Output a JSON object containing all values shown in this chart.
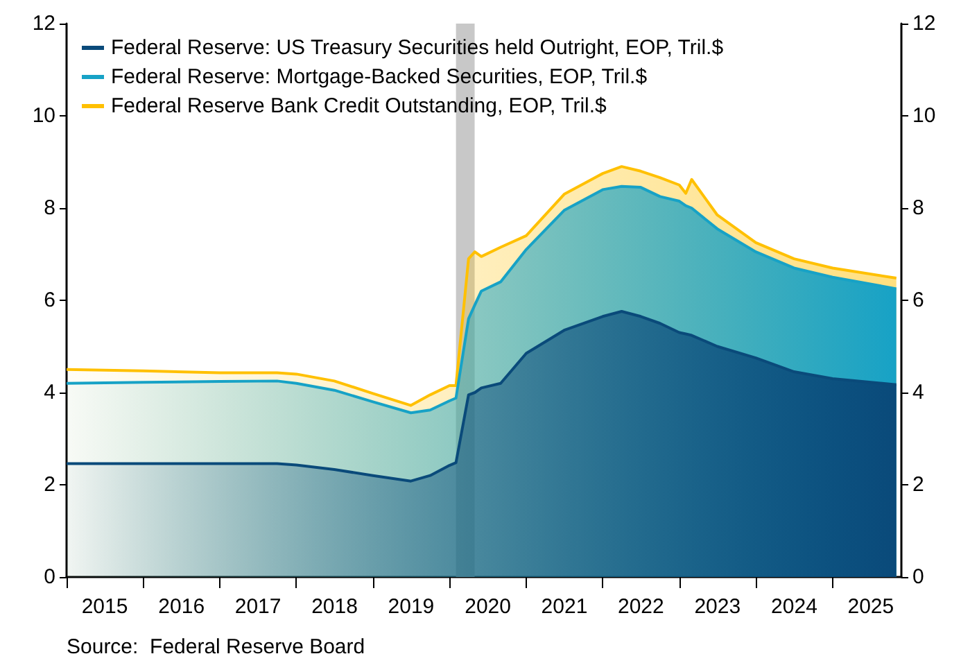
{
  "chart_data": {
    "type": "area",
    "stacked": true,
    "x": [
      "2015-01",
      "2016-01",
      "2017-01",
      "2017-10",
      "2018-01",
      "2018-07",
      "2019-01",
      "2019-07",
      "2019-10",
      "2020-01",
      "2020-02",
      "2020-04",
      "2020-05",
      "2020-06",
      "2020-09",
      "2021-01",
      "2021-07",
      "2022-01",
      "2022-04",
      "2022-07",
      "2022-10",
      "2023-01",
      "2023-02",
      "2023-03",
      "2023-07",
      "2024-01",
      "2024-07",
      "2025-01",
      "2025-11"
    ],
    "series": [
      {
        "name": "Federal Reserve: US Treasury Securities held Outright, EOP, Tril.$",
        "color": "#0a4a7a",
        "values": [
          2.46,
          2.46,
          2.46,
          2.46,
          2.43,
          2.33,
          2.2,
          2.08,
          2.2,
          2.42,
          2.48,
          3.95,
          4.0,
          4.1,
          4.2,
          4.85,
          5.35,
          5.65,
          5.76,
          5.65,
          5.5,
          5.3,
          5.27,
          5.24,
          5.0,
          4.75,
          4.45,
          4.3,
          4.17
        ]
      },
      {
        "name": "Federal Reserve: Mortgage-Backed Securities, EOP, Tril.$",
        "color": "#17a2c6",
        "values": [
          1.74,
          1.76,
          1.78,
          1.79,
          1.77,
          1.72,
          1.6,
          1.48,
          1.42,
          1.4,
          1.4,
          1.65,
          1.9,
          2.1,
          2.2,
          2.25,
          2.6,
          2.75,
          2.71,
          2.8,
          2.75,
          2.85,
          2.78,
          2.76,
          2.55,
          2.3,
          2.25,
          2.2,
          2.08
        ]
      },
      {
        "name": "Federal Reserve Bank Credit Outstanding, EOP, Tril.$",
        "color": "#ffc000",
        "values": [
          0.3,
          0.25,
          0.19,
          0.18,
          0.2,
          0.2,
          0.18,
          0.16,
          0.33,
          0.33,
          0.27,
          1.3,
          1.15,
          0.75,
          0.75,
          0.3,
          0.35,
          0.35,
          0.43,
          0.35,
          0.41,
          0.35,
          0.27,
          0.62,
          0.3,
          0.2,
          0.2,
          0.2,
          0.23
        ]
      }
    ],
    "xlim": [
      "2015-01-01",
      "2025-11-25"
    ],
    "xticks": [
      {
        "value": "2015-01-01",
        "label": null
      },
      {
        "value": "2015-07-02",
        "label": "2015"
      },
      {
        "value": "2016-01-01",
        "label": null
      },
      {
        "value": "2016-07-02",
        "label": "2016"
      },
      {
        "value": "2017-01-01",
        "label": null
      },
      {
        "value": "2017-07-02",
        "label": "2017"
      },
      {
        "value": "2018-01-01",
        "label": null
      },
      {
        "value": "2018-07-02",
        "label": "2018"
      },
      {
        "value": "2019-01-01",
        "label": null
      },
      {
        "value": "2019-07-02",
        "label": "2019"
      },
      {
        "value": "2020-01-01",
        "label": null
      },
      {
        "value": "2020-07-02",
        "label": "2020"
      },
      {
        "value": "2021-01-01",
        "label": null
      },
      {
        "value": "2021-07-02",
        "label": "2021"
      },
      {
        "value": "2022-01-01",
        "label": null
      },
      {
        "value": "2022-07-02",
        "label": "2022"
      },
      {
        "value": "2023-01-01",
        "label": null
      },
      {
        "value": "2023-07-02",
        "label": "2023"
      },
      {
        "value": "2024-01-01",
        "label": null
      },
      {
        "value": "2024-07-02",
        "label": "2024"
      },
      {
        "value": "2025-01-01",
        "label": null
      },
      {
        "value": "2025-07-02",
        "label": "2025"
      }
    ],
    "ylim": [
      0,
      12
    ],
    "yticks": [
      0,
      2,
      4,
      6,
      8,
      10,
      12
    ],
    "y2lim": [
      0,
      12
    ],
    "y2ticks": [
      0,
      2,
      4,
      6,
      8,
      10,
      12
    ],
    "bands": [
      {
        "axis": "x",
        "from": "2020-02-01",
        "to": "2020-04-30",
        "color": "#c8c8c8"
      }
    ],
    "legend": "top left",
    "grid": false,
    "annotations": [
      "Source:  Federal Reserve Board"
    ]
  }
}
